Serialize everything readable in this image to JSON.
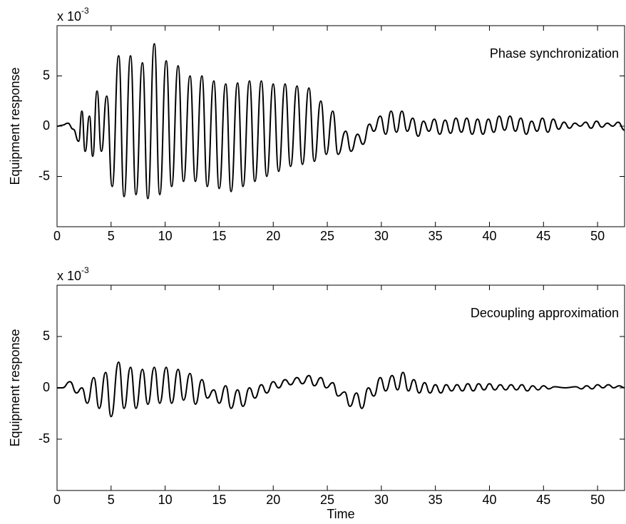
{
  "chart_data": [
    {
      "type": "line",
      "annotation": "Phase synchronization",
      "ylabel": "Equipment response",
      "y_multiplier": "x 10",
      "y_multiplier_exponent": "-3",
      "color": "#000000",
      "x": [
        0,
        0.5,
        1,
        1.5,
        2,
        2.3,
        2.6,
        3,
        3.3,
        3.7,
        4.1,
        4.6,
        5.1,
        5.7,
        6.2,
        6.8,
        7.3,
        7.9,
        8.4,
        9,
        9.5,
        10.1,
        10.6,
        11.2,
        11.7,
        12.3,
        12.8,
        13.4,
        13.9,
        14.5,
        15,
        15.6,
        16.1,
        16.7,
        17.2,
        17.8,
        18.3,
        18.9,
        19.4,
        20,
        20.5,
        21.1,
        21.6,
        22.2,
        22.7,
        23.3,
        23.8,
        24.4,
        24.9,
        25.5,
        26,
        26.7,
        27.2,
        27.8,
        28.3,
        28.9,
        29.3,
        29.9,
        30.4,
        30.9,
        31.4,
        31.9,
        32.4,
        32.9,
        33.4,
        33.9,
        34.4,
        34.9,
        35.4,
        35.9,
        36.4,
        36.9,
        37.4,
        37.9,
        38.4,
        38.9,
        39.4,
        39.9,
        40.4,
        40.9,
        41.4,
        41.9,
        42.4,
        42.9,
        43.4,
        43.9,
        44.4,
        44.9,
        45.4,
        45.9,
        46.4,
        46.9,
        47.4,
        47.9,
        48.4,
        48.9,
        49.4,
        49.9,
        50.4,
        50.9,
        51.4,
        51.9,
        52.5
      ],
      "values": [
        0,
        0.1,
        0.3,
        -0.3,
        -1.5,
        1.5,
        -2.5,
        1,
        -3,
        3.5,
        -2.5,
        3,
        -6,
        7,
        -7,
        7,
        -6.8,
        6.3,
        -7.2,
        8.2,
        -6.8,
        6.5,
        -6,
        6,
        -5.5,
        5,
        -5.5,
        5,
        -6,
        4.5,
        -6.2,
        4.2,
        -6.5,
        4.3,
        -6,
        4.5,
        -5.5,
        4.5,
        -5,
        4.2,
        -4.5,
        4.2,
        -4,
        4,
        -3.8,
        3.8,
        -3.5,
        2.5,
        -2.8,
        1.5,
        -2.8,
        -0.5,
        -2.5,
        -0.8,
        -1.8,
        0.2,
        -0.5,
        1,
        -0.8,
        1.5,
        -0.6,
        1.5,
        -0.5,
        0.8,
        -1,
        0.5,
        -0.5,
        0.7,
        -0.8,
        0.6,
        -0.7,
        0.8,
        -0.6,
        0.8,
        -0.8,
        0.7,
        -0.8,
        0.7,
        -0.6,
        1,
        -0.4,
        1,
        -0.5,
        0.8,
        -0.8,
        0.5,
        -0.5,
        0.8,
        -0.6,
        0.7,
        -0.3,
        0.4,
        -0.2,
        0.3,
        0,
        0.4,
        -0.2,
        0.5,
        -0.1,
        0.3,
        0,
        0.4,
        -0.4
      ],
      "xlim": [
        0,
        52.5
      ],
      "ylim": [
        -10,
        10
      ],
      "xticks": [
        0,
        5,
        10,
        15,
        20,
        25,
        30,
        35,
        40,
        45,
        50
      ],
      "yticks": [
        -5,
        0,
        5
      ]
    },
    {
      "type": "line",
      "annotation": "Decoupling approximation",
      "ylabel": "Equipment response",
      "xlabel": "Time",
      "y_multiplier": "x 10",
      "y_multiplier_exponent": "-3",
      "color": "#000000",
      "x": [
        0,
        0.5,
        1.2,
        1.8,
        2.3,
        2.8,
        3.4,
        3.9,
        4.5,
        5,
        5.7,
        6.2,
        6.8,
        7.3,
        7.9,
        8.4,
        9,
        9.5,
        10.1,
        10.6,
        11.2,
        11.7,
        12.3,
        12.8,
        13.4,
        13.9,
        14.5,
        15,
        15.6,
        16.1,
        16.7,
        17.2,
        17.8,
        18.3,
        18.9,
        19.4,
        20,
        20.5,
        21.1,
        21.6,
        22.2,
        22.7,
        23.3,
        23.8,
        24.4,
        24.9,
        25.5,
        26,
        26.6,
        27.1,
        27.7,
        28.2,
        28.8,
        29.3,
        29.9,
        30.4,
        31,
        31.5,
        32,
        32.5,
        33,
        33.5,
        34,
        34.5,
        35,
        35.5,
        36,
        36.5,
        37,
        37.5,
        38,
        38.5,
        39,
        39.5,
        40,
        40.5,
        41,
        41.5,
        42,
        42.5,
        43,
        43.5,
        44,
        44.5,
        45,
        45.5,
        46,
        47,
        48,
        48.5,
        49,
        49.5,
        50,
        50.5,
        51,
        51.5,
        52,
        52.5
      ],
      "values": [
        0,
        0,
        0.6,
        -0.5,
        0,
        -1.5,
        1,
        -2,
        1.5,
        -2.8,
        2.5,
        -2,
        2,
        -2,
        1.8,
        -1.6,
        2,
        -1.5,
        2,
        -1.5,
        1.8,
        -1.2,
        1.4,
        -1.6,
        0.8,
        -1,
        -0.2,
        -1.5,
        0.2,
        -2,
        -0.2,
        -1.8,
        0,
        -1,
        0.3,
        -0.5,
        0.6,
        0,
        0.8,
        0.3,
        1,
        0.4,
        1.2,
        0.2,
        1,
        0,
        0.5,
        -0.8,
        -0.4,
        -1.8,
        -0.5,
        -2,
        0,
        -0.8,
        1,
        -0.3,
        1.2,
        -0.2,
        1.5,
        -0.3,
        0.8,
        -0.5,
        0.5,
        -0.5,
        0.3,
        -0.5,
        0.3,
        -0.3,
        0.3,
        -0.3,
        0.4,
        -0.3,
        0.4,
        -0.2,
        0.4,
        -0.2,
        0.3,
        -0.2,
        0.3,
        -0.2,
        0.3,
        -0.3,
        0.2,
        -0.2,
        0.2,
        -0.1,
        0.1,
        0,
        0.1,
        -0.1,
        0.2,
        -0.1,
        0.3,
        0,
        0.3,
        0,
        0.2,
        0
      ],
      "xlim": [
        0,
        52.5
      ],
      "ylim": [
        -10,
        10
      ],
      "xticks": [
        0,
        5,
        10,
        15,
        20,
        25,
        30,
        35,
        40,
        45,
        50
      ],
      "yticks": [
        -5,
        0,
        5
      ]
    }
  ]
}
